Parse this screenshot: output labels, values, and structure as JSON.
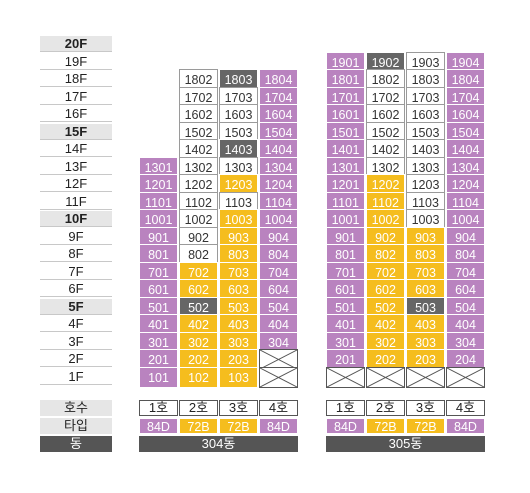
{
  "legend": {
    "unit_label": "호수",
    "type_label": "타입",
    "building_label": "동"
  },
  "colors": {
    "purple": "#b983bf",
    "yellow": "#f5bd1e",
    "white": "#ffffff",
    "gray": "#666666"
  },
  "floors": [
    {
      "label": "20F",
      "highlight": true
    },
    {
      "label": "19F",
      "highlight": false
    },
    {
      "label": "18F",
      "highlight": false
    },
    {
      "label": "17F",
      "highlight": false
    },
    {
      "label": "16F",
      "highlight": false
    },
    {
      "label": "15F",
      "highlight": true
    },
    {
      "label": "14F",
      "highlight": false
    },
    {
      "label": "13F",
      "highlight": false
    },
    {
      "label": "12F",
      "highlight": false
    },
    {
      "label": "11F",
      "highlight": false
    },
    {
      "label": "10F",
      "highlight": true
    },
    {
      "label": "9F",
      "highlight": false
    },
    {
      "label": "8F",
      "highlight": false
    },
    {
      "label": "7F",
      "highlight": false
    },
    {
      "label": "6F",
      "highlight": false
    },
    {
      "label": "5F",
      "highlight": true
    },
    {
      "label": "4F",
      "highlight": false
    },
    {
      "label": "3F",
      "highlight": false
    },
    {
      "label": "2F",
      "highlight": false
    },
    {
      "label": "1F",
      "highlight": false
    }
  ],
  "buildings": [
    {
      "name": "304동",
      "units": [
        "1호",
        "2호",
        "3호",
        "4호"
      ],
      "types": [
        {
          "label": "84D",
          "color": "purple"
        },
        {
          "label": "72B",
          "color": "yellow"
        },
        {
          "label": "72B",
          "color": "yellow"
        },
        {
          "label": "84D",
          "color": "purple"
        }
      ],
      "rows": [
        {
          "floor": 18,
          "cells": [
            null,
            {
              "no": "1802",
              "c": "white"
            },
            {
              "no": "1803",
              "c": "gray"
            },
            {
              "no": "1804",
              "c": "purple"
            }
          ]
        },
        {
          "floor": 17,
          "cells": [
            null,
            {
              "no": "1702",
              "c": "white"
            },
            {
              "no": "1703",
              "c": "white"
            },
            {
              "no": "1704",
              "c": "purple"
            }
          ]
        },
        {
          "floor": 16,
          "cells": [
            null,
            {
              "no": "1602",
              "c": "white"
            },
            {
              "no": "1603",
              "c": "white"
            },
            {
              "no": "1604",
              "c": "purple"
            }
          ]
        },
        {
          "floor": 15,
          "cells": [
            null,
            {
              "no": "1502",
              "c": "white"
            },
            {
              "no": "1503",
              "c": "white"
            },
            {
              "no": "1504",
              "c": "purple"
            }
          ]
        },
        {
          "floor": 14,
          "cells": [
            null,
            {
              "no": "1402",
              "c": "white"
            },
            {
              "no": "1403",
              "c": "gray"
            },
            {
              "no": "1404",
              "c": "purple"
            }
          ]
        },
        {
          "floor": 13,
          "cells": [
            {
              "no": "1301",
              "c": "purple"
            },
            {
              "no": "1302",
              "c": "white"
            },
            {
              "no": "1303",
              "c": "white"
            },
            {
              "no": "1304",
              "c": "purple"
            }
          ]
        },
        {
          "floor": 12,
          "cells": [
            {
              "no": "1201",
              "c": "purple"
            },
            {
              "no": "1202",
              "c": "white"
            },
            {
              "no": "1203",
              "c": "yellow"
            },
            {
              "no": "1204",
              "c": "purple"
            }
          ]
        },
        {
          "floor": 11,
          "cells": [
            {
              "no": "1101",
              "c": "purple"
            },
            {
              "no": "1102",
              "c": "white"
            },
            {
              "no": "1103",
              "c": "white"
            },
            {
              "no": "1104",
              "c": "purple"
            }
          ]
        },
        {
          "floor": 10,
          "cells": [
            {
              "no": "1001",
              "c": "purple"
            },
            {
              "no": "1002",
              "c": "white"
            },
            {
              "no": "1003",
              "c": "yellow"
            },
            {
              "no": "1004",
              "c": "purple"
            }
          ]
        },
        {
          "floor": 9,
          "cells": [
            {
              "no": "901",
              "c": "purple"
            },
            {
              "no": "902",
              "c": "white"
            },
            {
              "no": "903",
              "c": "yellow"
            },
            {
              "no": "904",
              "c": "purple"
            }
          ]
        },
        {
          "floor": 8,
          "cells": [
            {
              "no": "801",
              "c": "purple"
            },
            {
              "no": "802",
              "c": "white"
            },
            {
              "no": "803",
              "c": "yellow"
            },
            {
              "no": "804",
              "c": "purple"
            }
          ]
        },
        {
          "floor": 7,
          "cells": [
            {
              "no": "701",
              "c": "purple"
            },
            {
              "no": "702",
              "c": "yellow"
            },
            {
              "no": "703",
              "c": "yellow"
            },
            {
              "no": "704",
              "c": "purple"
            }
          ]
        },
        {
          "floor": 6,
          "cells": [
            {
              "no": "601",
              "c": "purple"
            },
            {
              "no": "602",
              "c": "yellow"
            },
            {
              "no": "603",
              "c": "yellow"
            },
            {
              "no": "604",
              "c": "purple"
            }
          ]
        },
        {
          "floor": 5,
          "cells": [
            {
              "no": "501",
              "c": "purple"
            },
            {
              "no": "502",
              "c": "gray"
            },
            {
              "no": "503",
              "c": "yellow"
            },
            {
              "no": "504",
              "c": "purple"
            }
          ]
        },
        {
          "floor": 4,
          "cells": [
            {
              "no": "401",
              "c": "purple"
            },
            {
              "no": "402",
              "c": "yellow"
            },
            {
              "no": "403",
              "c": "yellow"
            },
            {
              "no": "404",
              "c": "purple"
            }
          ]
        },
        {
          "floor": 3,
          "cells": [
            {
              "no": "301",
              "c": "purple"
            },
            {
              "no": "302",
              "c": "yellow"
            },
            {
              "no": "303",
              "c": "yellow"
            },
            {
              "no": "304",
              "c": "purple"
            }
          ]
        },
        {
          "floor": 2,
          "cells": [
            {
              "no": "201",
              "c": "purple"
            },
            {
              "no": "202",
              "c": "yellow"
            },
            {
              "no": "203",
              "c": "yellow"
            },
            {
              "no": "",
              "c": "x"
            }
          ]
        },
        {
          "floor": 1,
          "cells": [
            {
              "no": "101",
              "c": "purple"
            },
            {
              "no": "102",
              "c": "yellow"
            },
            {
              "no": "103",
              "c": "yellow"
            },
            {
              "no": "",
              "c": "x"
            }
          ]
        }
      ]
    },
    {
      "name": "305동",
      "units": [
        "1호",
        "2호",
        "3호",
        "4호"
      ],
      "types": [
        {
          "label": "84D",
          "color": "purple"
        },
        {
          "label": "72B",
          "color": "yellow"
        },
        {
          "label": "72B",
          "color": "yellow"
        },
        {
          "label": "84D",
          "color": "purple"
        }
      ],
      "rows": [
        {
          "floor": 19,
          "cells": [
            {
              "no": "1901",
              "c": "purple"
            },
            {
              "no": "1902",
              "c": "gray"
            },
            {
              "no": "1903",
              "c": "white"
            },
            {
              "no": "1904",
              "c": "purple"
            }
          ]
        },
        {
          "floor": 18,
          "cells": [
            {
              "no": "1801",
              "c": "purple"
            },
            {
              "no": "1802",
              "c": "white"
            },
            {
              "no": "1803",
              "c": "white"
            },
            {
              "no": "1804",
              "c": "purple"
            }
          ]
        },
        {
          "floor": 17,
          "cells": [
            {
              "no": "1701",
              "c": "purple"
            },
            {
              "no": "1702",
              "c": "white"
            },
            {
              "no": "1703",
              "c": "white"
            },
            {
              "no": "1704",
              "c": "purple"
            }
          ]
        },
        {
          "floor": 16,
          "cells": [
            {
              "no": "1601",
              "c": "purple"
            },
            {
              "no": "1602",
              "c": "white"
            },
            {
              "no": "1603",
              "c": "white"
            },
            {
              "no": "1604",
              "c": "purple"
            }
          ]
        },
        {
          "floor": 15,
          "cells": [
            {
              "no": "1501",
              "c": "purple"
            },
            {
              "no": "1502",
              "c": "white"
            },
            {
              "no": "1503",
              "c": "white"
            },
            {
              "no": "1504",
              "c": "purple"
            }
          ]
        },
        {
          "floor": 14,
          "cells": [
            {
              "no": "1401",
              "c": "purple"
            },
            {
              "no": "1402",
              "c": "white"
            },
            {
              "no": "1403",
              "c": "white"
            },
            {
              "no": "1404",
              "c": "purple"
            }
          ]
        },
        {
          "floor": 13,
          "cells": [
            {
              "no": "1301",
              "c": "purple"
            },
            {
              "no": "1302",
              "c": "white"
            },
            {
              "no": "1303",
              "c": "white"
            },
            {
              "no": "1304",
              "c": "purple"
            }
          ]
        },
        {
          "floor": 12,
          "cells": [
            {
              "no": "1201",
              "c": "purple"
            },
            {
              "no": "1202",
              "c": "yellow"
            },
            {
              "no": "1203",
              "c": "white"
            },
            {
              "no": "1204",
              "c": "purple"
            }
          ]
        },
        {
          "floor": 11,
          "cells": [
            {
              "no": "1101",
              "c": "purple"
            },
            {
              "no": "1102",
              "c": "yellow"
            },
            {
              "no": "1103",
              "c": "white"
            },
            {
              "no": "1104",
              "c": "purple"
            }
          ]
        },
        {
          "floor": 10,
          "cells": [
            {
              "no": "1001",
              "c": "purple"
            },
            {
              "no": "1002",
              "c": "yellow"
            },
            {
              "no": "1003",
              "c": "white"
            },
            {
              "no": "1004",
              "c": "purple"
            }
          ]
        },
        {
          "floor": 9,
          "cells": [
            {
              "no": "901",
              "c": "purple"
            },
            {
              "no": "902",
              "c": "yellow"
            },
            {
              "no": "903",
              "c": "yellow"
            },
            {
              "no": "904",
              "c": "purple"
            }
          ]
        },
        {
          "floor": 8,
          "cells": [
            {
              "no": "801",
              "c": "purple"
            },
            {
              "no": "802",
              "c": "yellow"
            },
            {
              "no": "803",
              "c": "yellow"
            },
            {
              "no": "804",
              "c": "purple"
            }
          ]
        },
        {
          "floor": 7,
          "cells": [
            {
              "no": "701",
              "c": "purple"
            },
            {
              "no": "702",
              "c": "yellow"
            },
            {
              "no": "703",
              "c": "yellow"
            },
            {
              "no": "704",
              "c": "purple"
            }
          ]
        },
        {
          "floor": 6,
          "cells": [
            {
              "no": "601",
              "c": "purple"
            },
            {
              "no": "602",
              "c": "yellow"
            },
            {
              "no": "603",
              "c": "yellow"
            },
            {
              "no": "604",
              "c": "purple"
            }
          ]
        },
        {
          "floor": 5,
          "cells": [
            {
              "no": "501",
              "c": "purple"
            },
            {
              "no": "502",
              "c": "yellow"
            },
            {
              "no": "503",
              "c": "gray"
            },
            {
              "no": "504",
              "c": "purple"
            }
          ]
        },
        {
          "floor": 4,
          "cells": [
            {
              "no": "401",
              "c": "purple"
            },
            {
              "no": "402",
              "c": "yellow"
            },
            {
              "no": "403",
              "c": "yellow"
            },
            {
              "no": "404",
              "c": "purple"
            }
          ]
        },
        {
          "floor": 3,
          "cells": [
            {
              "no": "301",
              "c": "purple"
            },
            {
              "no": "302",
              "c": "yellow"
            },
            {
              "no": "303",
              "c": "yellow"
            },
            {
              "no": "304",
              "c": "purple"
            }
          ]
        },
        {
          "floor": 2,
          "cells": [
            {
              "no": "201",
              "c": "purple"
            },
            {
              "no": "202",
              "c": "yellow"
            },
            {
              "no": "203",
              "c": "yellow"
            },
            {
              "no": "204",
              "c": "purple"
            }
          ]
        },
        {
          "floor": 1,
          "cells": [
            {
              "no": "",
              "c": "x"
            },
            {
              "no": "",
              "c": "x"
            },
            {
              "no": "",
              "c": "x"
            },
            {
              "no": "",
              "c": "x"
            }
          ]
        }
      ]
    }
  ]
}
